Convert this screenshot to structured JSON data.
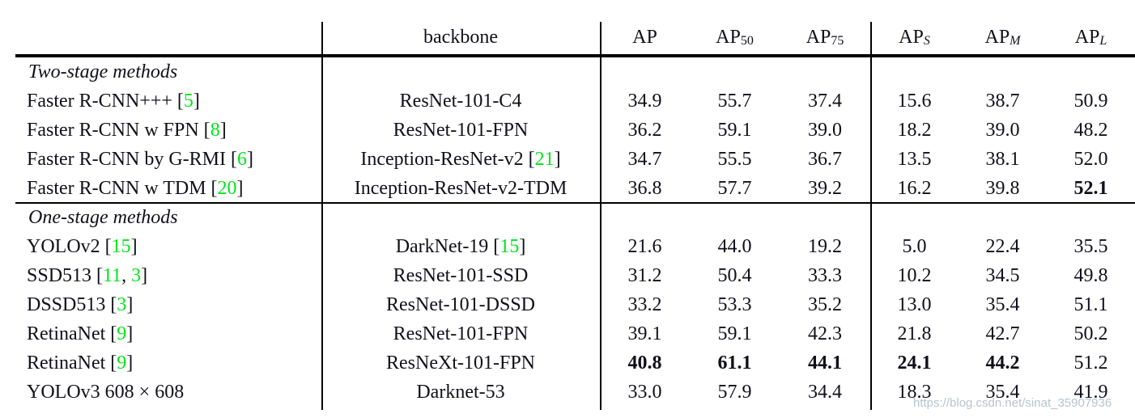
{
  "table": {
    "header": {
      "method_label": "",
      "backbone_label": "backbone",
      "metric_columns": [
        {
          "base": "AP",
          "sub": "",
          "sub_style": "normal"
        },
        {
          "base": "AP",
          "sub": "50",
          "sub_style": "normal"
        },
        {
          "base": "AP",
          "sub": "75",
          "sub_style": "normal"
        },
        {
          "base": "AP",
          "sub": "S",
          "sub_style": "italic"
        },
        {
          "base": "AP",
          "sub": "M",
          "sub_style": "italic"
        },
        {
          "base": "AP",
          "sub": "L",
          "sub_style": "italic"
        }
      ]
    },
    "sections": [
      {
        "title": "Two-stage methods",
        "rows": [
          {
            "method": [
              {
                "t": "Faster R-CNN+++ ["
              },
              {
                "t": "5",
                "green": true
              },
              {
                "t": "]"
              }
            ],
            "backbone": [
              {
                "t": "ResNet-101-C4"
              }
            ],
            "values": [
              {
                "v": "34.9"
              },
              {
                "v": "55.7"
              },
              {
                "v": "37.4"
              },
              {
                "v": "15.6"
              },
              {
                "v": "38.7"
              },
              {
                "v": "50.9"
              }
            ]
          },
          {
            "method": [
              {
                "t": "Faster R-CNN w FPN ["
              },
              {
                "t": "8",
                "green": true
              },
              {
                "t": "]"
              }
            ],
            "backbone": [
              {
                "t": "ResNet-101-FPN"
              }
            ],
            "values": [
              {
                "v": "36.2"
              },
              {
                "v": "59.1"
              },
              {
                "v": "39.0"
              },
              {
                "v": "18.2"
              },
              {
                "v": "39.0"
              },
              {
                "v": "48.2"
              }
            ]
          },
          {
            "method": [
              {
                "t": "Faster R-CNN by G-RMI ["
              },
              {
                "t": "6",
                "green": true
              },
              {
                "t": "]"
              }
            ],
            "backbone": [
              {
                "t": "Inception-ResNet-v2 ["
              },
              {
                "t": "21",
                "green": true
              },
              {
                "t": "]"
              }
            ],
            "values": [
              {
                "v": "34.7"
              },
              {
                "v": "55.5"
              },
              {
                "v": "36.7"
              },
              {
                "v": "13.5"
              },
              {
                "v": "38.1"
              },
              {
                "v": "52.0"
              }
            ]
          },
          {
            "method": [
              {
                "t": "Faster R-CNN w TDM ["
              },
              {
                "t": "20",
                "green": true
              },
              {
                "t": "]"
              }
            ],
            "backbone": [
              {
                "t": "Inception-ResNet-v2-TDM"
              }
            ],
            "values": [
              {
                "v": "36.8"
              },
              {
                "v": "57.7"
              },
              {
                "v": "39.2"
              },
              {
                "v": "16.2"
              },
              {
                "v": "39.8"
              },
              {
                "v": "52.1",
                "bold": true
              }
            ]
          }
        ]
      },
      {
        "title": "One-stage methods",
        "rows": [
          {
            "method": [
              {
                "t": "YOLOv2 ["
              },
              {
                "t": "15",
                "green": true
              },
              {
                "t": "]"
              }
            ],
            "backbone": [
              {
                "t": "DarkNet-19 ["
              },
              {
                "t": "15",
                "green": true
              },
              {
                "t": "]"
              }
            ],
            "values": [
              {
                "v": "21.6"
              },
              {
                "v": "44.0"
              },
              {
                "v": "19.2"
              },
              {
                "v": "5.0"
              },
              {
                "v": "22.4"
              },
              {
                "v": "35.5"
              }
            ]
          },
          {
            "method": [
              {
                "t": "SSD513 ["
              },
              {
                "t": "11",
                "green": true
              },
              {
                "t": ", "
              },
              {
                "t": "3",
                "green": true
              },
              {
                "t": "]"
              }
            ],
            "backbone": [
              {
                "t": "ResNet-101-SSD"
              }
            ],
            "values": [
              {
                "v": "31.2"
              },
              {
                "v": "50.4"
              },
              {
                "v": "33.3"
              },
              {
                "v": "10.2"
              },
              {
                "v": "34.5"
              },
              {
                "v": "49.8"
              }
            ]
          },
          {
            "method": [
              {
                "t": "DSSD513 ["
              },
              {
                "t": "3",
                "green": true
              },
              {
                "t": "]"
              }
            ],
            "backbone": [
              {
                "t": "ResNet-101-DSSD"
              }
            ],
            "values": [
              {
                "v": "33.2"
              },
              {
                "v": "53.3"
              },
              {
                "v": "35.2"
              },
              {
                "v": "13.0"
              },
              {
                "v": "35.4"
              },
              {
                "v": "51.1"
              }
            ]
          },
          {
            "method": [
              {
                "t": "RetinaNet ["
              },
              {
                "t": "9",
                "green": true
              },
              {
                "t": "]"
              }
            ],
            "backbone": [
              {
                "t": "ResNet-101-FPN"
              }
            ],
            "values": [
              {
                "v": "39.1"
              },
              {
                "v": "59.1"
              },
              {
                "v": "42.3"
              },
              {
                "v": "21.8"
              },
              {
                "v": "42.7"
              },
              {
                "v": "50.2"
              }
            ]
          },
          {
            "method": [
              {
                "t": "RetinaNet ["
              },
              {
                "t": "9",
                "green": true
              },
              {
                "t": "]"
              }
            ],
            "backbone": [
              {
                "t": "ResNeXt-101-FPN"
              }
            ],
            "values": [
              {
                "v": "40.8",
                "bold": true
              },
              {
                "v": "61.1",
                "bold": true
              },
              {
                "v": "44.1",
                "bold": true
              },
              {
                "v": "24.1",
                "bold": true
              },
              {
                "v": "44.2",
                "bold": true
              },
              {
                "v": "51.2"
              }
            ]
          },
          {
            "method": [
              {
                "t": "YOLOv3 608 × 608"
              }
            ],
            "backbone": [
              {
                "t": "Darknet-53"
              }
            ],
            "values": [
              {
                "v": "33.0"
              },
              {
                "v": "57.9"
              },
              {
                "v": "34.4"
              },
              {
                "v": "18.3"
              },
              {
                "v": "35.4"
              },
              {
                "v": "41.9"
              }
            ]
          }
        ]
      }
    ]
  },
  "watermark": {
    "text": "https://blog.csdn.net/sinat_35907936"
  },
  "colors": {
    "citation_green": "#00e619",
    "text": "#10101a",
    "rule_black": "#000000",
    "watermark_gray": "#aab8c3"
  }
}
